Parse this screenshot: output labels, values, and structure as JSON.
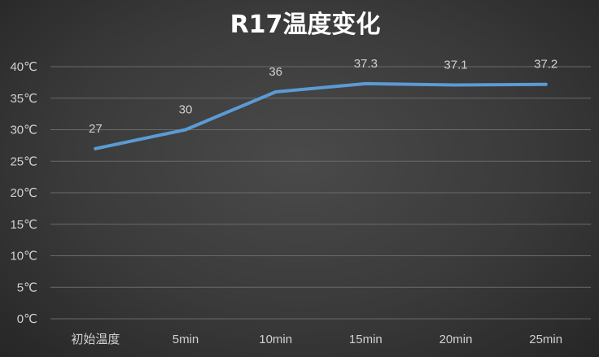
{
  "chart_data": {
    "type": "line",
    "title": "R17温度变化",
    "categories": [
      "初始温度",
      "5min",
      "10min",
      "15min",
      "20min",
      "25min"
    ],
    "series": [
      {
        "values": [
          27,
          30,
          36,
          37.3,
          37.1,
          37.2
        ]
      }
    ],
    "data_labels": [
      "27",
      "30",
      "36",
      "37.3",
      "37.1",
      "37.2"
    ],
    "ylim": [
      0,
      40
    ],
    "y_ticks": [
      0,
      5,
      10,
      15,
      20,
      25,
      30,
      35,
      40
    ],
    "y_tick_labels": [
      "0℃",
      "5℃",
      "10℃",
      "15℃",
      "20℃",
      "25℃",
      "30℃",
      "35℃",
      "40℃"
    ],
    "grid": true,
    "legend": "none",
    "colors": {
      "line": "#5b9bd5",
      "background": "#3a3a3a",
      "text": "#d0d0d0",
      "title": "#ffffff"
    }
  }
}
